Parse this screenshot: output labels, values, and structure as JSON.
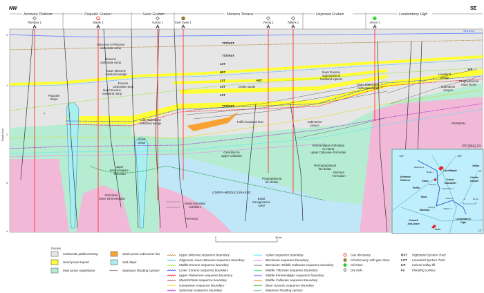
{
  "direction": {
    "left": "NW",
    "right": "SE"
  },
  "provinces": [
    "Ashmore Platform",
    "Paqualin Graben",
    "Swan Graben",
    "Montara Terrace",
    "Heywood Graben",
    "Londonderry High"
  ],
  "wells": [
    {
      "name": "Rainbow 1",
      "status": "Dry hole"
    },
    {
      "name": "Maple 1",
      "status": "Gas discovery"
    },
    {
      "name": "Vulcan 1",
      "status": "Dry hole"
    },
    {
      "name": "East Swan 1",
      "status": "Oil discovery with gas show"
    },
    {
      "name": "Yering 1",
      "status": "Dry hole"
    },
    {
      "name": "Tallaris 1",
      "status": "Dry hole"
    },
    {
      "name": "Anson 1",
      "status": "Oil show"
    }
  ],
  "section": {
    "sea_floor": "Sea floor",
    "depth_axis_label": "Depth (km)",
    "depth_ticks": [
      "0",
      "1",
      "2",
      "3",
      "4"
    ],
    "drawing_code": "PP (864) 14",
    "labels": {
      "holocene": "Holocene to Pliocene",
      "holocene2": "carbonate ramp",
      "miocene": "Miocene",
      "miocene2": "carbonate ramp",
      "lmiocene": "lower Miocene",
      "lmiocene2": "lowstand wedge",
      "eocene": "Eocene",
      "eocene2": "carbonate ramp",
      "leocene": "lower Eocene",
      "leocene2": "lowstand ramp",
      "paqualin": "Paqualin",
      "paqualin2": "Diapir",
      "latepal": "Late Paleocene",
      "latepal2": "lowstand wedge",
      "swan": "Swan",
      "swan2": "Diapir",
      "ukimm": "upper",
      "ukimm2": "Kimmeridgian–",
      "ukimm3": "Tithonian",
      "oxf": "Oxfordian–",
      "oxf2": "lower Kimmeridgian",
      "distal": "Distal Oxfordian",
      "distal2": "turbidites",
      "tstHst1": "TST/HST",
      "tstHst2": "TST/HST",
      "lst1": "LST",
      "hst1": "HST",
      "lst2": "LST",
      "hst2": "HST",
      "lst3": "LST",
      "grebe": "Grebe sands",
      "lst4": "LST",
      "tstHst3": "TST/HST",
      "leoceneAgg": "lower Eocene",
      "leoceneAgg2": "aggradational",
      "leoceneAgg3": "lowstand topsets",
      "lpal": "lower Paleocene",
      "lpal2": "carbonate ramp",
      "puffin": "Puffin lowstand fans",
      "submarine": "Submarine",
      "submarine2": "canyon",
      "kimmOxf": "Kimmeridgian-Oxfordian",
      "kimmOxf2": "to mainly",
      "kimmOxf3": "upper Callovian–Oxfordian",
      "oxfCall": "Oxfordian to",
      "oxfCall2": "upper Callovian",
      "retro": "Retrogradational",
      "retro2": "fan deltas",
      "montara": "Montara",
      "montara2": "Formation",
      "prog": "Progradational",
      "prog2": "fan deltas",
      "basal": "Basal",
      "basal2": "transgressive",
      "basal3": "sand",
      "lmj": "LOWER–MIDDLE JURASSIC",
      "triassic": "TRIASSIC",
      "permian": "PERMIAN",
      "lowstand": "Lowstand",
      "lowstand2": "wedge",
      "ivf": "IVF",
      "progSlope": "Progradational",
      "progSlope2": "slope facies",
      "submarineB": "Submarine",
      "submarineB2": "canyon",
      "q": "?"
    }
  },
  "scale_bar": {
    "start": "0",
    "end": "25 km"
  },
  "legend": {
    "title": "Facies",
    "facies": [
      {
        "label": "Carbonate platform/ramp",
        "color": "#e6e6e6"
      },
      {
        "label": "Sand prone topset",
        "color": "#ffff33"
      },
      {
        "label": "Mud prone slope/basin",
        "color": "#b5ecd2"
      },
      {
        "label": "Sand prone submarine fan",
        "color": "#f7a233"
      },
      {
        "label": "Salt diapir",
        "color": "#a8f0f0"
      }
    ],
    "mfs_grey": "Maximum flooding surface",
    "boundaries_1": [
      {
        "label": "Upper Miocene sequence boundary",
        "color": "#b08a3a"
      },
      {
        "label": "Oligocene–lower Miocene sequence boundary",
        "color": "#3fb5ff"
      },
      {
        "label": "Middle Eocene sequence boundary",
        "color": "#9be33a"
      },
      {
        "label": "Lower Eocene sequence boundary",
        "color": "#2a4cff"
      },
      {
        "label": "Upper Paleocene sequence boundary",
        "color": "#ff2020"
      },
      {
        "label": "Maastrichtian sequence boundary",
        "color": "#a05050"
      },
      {
        "label": "Campanian sequence boundary",
        "color": "#e8d800"
      },
      {
        "label": "Santonian sequence boundary",
        "color": "#b030d0"
      }
    ],
    "boundaries_2": [
      {
        "label": "Aptian sequence boundary",
        "color": "#50e8f0"
      },
      {
        "label": "Berriasian sequence boundary",
        "color": "#f07af0"
      },
      {
        "label": "Berriasian–Middle Callovian sequence boundary",
        "color": "#777777"
      },
      {
        "label": "Middle Tithonian sequence boundary",
        "color": "#40e070"
      },
      {
        "label": "Middle Kimmeridgian sequence boundary",
        "color": "#7a7aff"
      },
      {
        "label": "Middle Callovian sequence boundary",
        "color": "#e08020"
      },
      {
        "label": "Base Jurassic sequence boundary",
        "color": "#20a040"
      },
      {
        "label": "Maximum flooding surface",
        "color": "#20a040"
      }
    ],
    "wells": [
      {
        "label": "Gas discovery",
        "icon": "gas-discovery-icon"
      },
      {
        "label": "Oil discovery with gas show",
        "icon": "oil-gas-show-icon"
      },
      {
        "label": "Oil show",
        "icon": "oil-show-icon"
      },
      {
        "label": "Dry hole",
        "icon": "dry-hole-icon"
      }
    ],
    "abbrev": [
      {
        "code": "HST",
        "label": "Highstand System Tract"
      },
      {
        "code": "LST",
        "label": "Lowstand System Tract"
      },
      {
        "code": "IvF",
        "label": "Incised valley fill"
      },
      {
        "code": "Fs",
        "label": "Flooding surface"
      }
    ]
  },
  "inset": {
    "lon1": "124°",
    "lon2": "125°",
    "lat1": "12°",
    "lat2": "13°",
    "fields": [
      "Cash/Maple",
      "Jabiru",
      "Challis",
      "Cassini",
      "Swan",
      "Puffin",
      "Skua",
      "Montara",
      "Crux"
    ],
    "regions": [
      "Ashmore",
      "Platform",
      "Vulcan",
      "Sub-basin",
      "Caswell",
      "Sub-basin",
      "Londonderry",
      "High"
    ],
    "wells": [
      "Rainbow 1",
      "Maple 1",
      "Vulcan 1",
      "East Swan 1",
      "Anson 1",
      "Yering 1",
      "Tallaris 1"
    ],
    "scale": {
      "start": "0",
      "end": "20 km"
    }
  }
}
